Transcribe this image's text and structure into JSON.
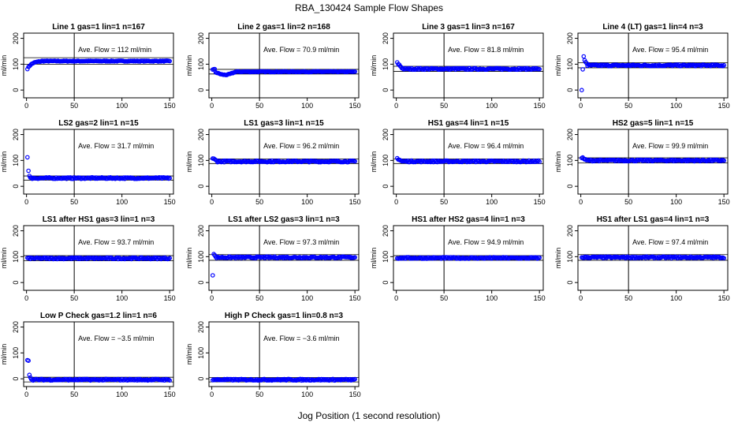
{
  "figure": {
    "title": "RBA_130424  Sample Flow Shapes",
    "xlabel": "Jog Position (1 second resolution)"
  },
  "chart_data": [
    {
      "type": "scatter",
      "title": "Line 1 gas=1 lin=1 n=167",
      "ylabel": "ml/min",
      "annotation": "Ave. Flow =  112  ml/min",
      "xlim": [
        -3,
        154
      ],
      "ylim": [
        -30,
        220
      ],
      "x_ticks": [
        0,
        50,
        100,
        150
      ],
      "y_ticks": [
        0,
        100,
        200
      ],
      "mean": 112,
      "band": [
        100,
        125
      ],
      "vline": 50,
      "marker_color": "#0000ff",
      "shape": "rise",
      "start_value": 75,
      "start_len": 15
    },
    {
      "type": "scatter",
      "title": "Line 2 gas=1 lin=2 n=168",
      "ylabel": "ml/min",
      "annotation": "Ave. Flow = 70.9  ml/min",
      "xlim": [
        -3,
        154
      ],
      "ylim": [
        -30,
        220
      ],
      "x_ticks": [
        0,
        50,
        100,
        150
      ],
      "y_ticks": [
        0,
        100,
        200
      ],
      "mean": 70.9,
      "band": [
        62,
        80
      ],
      "vline": 50,
      "marker_color": "#0000ff",
      "shape": "dip",
      "start_value": 80,
      "start_len": 25
    },
    {
      "type": "scatter",
      "title": "Line 3 gas=1 lin=3 n=167",
      "ylabel": "ml/min",
      "annotation": "Ave. Flow = 81.8  ml/min",
      "xlim": [
        -3,
        154
      ],
      "ylim": [
        -30,
        220
      ],
      "x_ticks": [
        0,
        50,
        100,
        150
      ],
      "y_ticks": [
        0,
        100,
        200
      ],
      "mean": 81.8,
      "band": [
        72,
        92
      ],
      "vline": 50,
      "marker_color": "#0000ff",
      "shape": "spike",
      "start_value": 105,
      "start_len": 6
    },
    {
      "type": "scatter",
      "title": "Line 4 (LT) gas=1 lin=4 n=3",
      "ylabel": "ml/min",
      "annotation": "Ave. Flow = 95.4  ml/min",
      "xlim": [
        -3,
        154
      ],
      "ylim": [
        -30,
        220
      ],
      "x_ticks": [
        0,
        50,
        100,
        150
      ],
      "y_ticks": [
        0,
        100,
        200
      ],
      "mean": 95.4,
      "band": [
        86,
        106
      ],
      "vline": 50,
      "marker_color": "#0000ff",
      "shape": "outliers",
      "start_points": [
        [
          1,
          0
        ],
        [
          2,
          80
        ],
        [
          3,
          130
        ],
        [
          4,
          115
        ],
        [
          5,
          108
        ],
        [
          6,
          104
        ]
      ]
    },
    {
      "type": "scatter",
      "title": "LS2 gas=2 lin=1 n=15",
      "ylabel": "ml/min",
      "annotation": "Ave. Flow = 31.7  ml/min",
      "xlim": [
        -3,
        154
      ],
      "ylim": [
        -30,
        220
      ],
      "x_ticks": [
        0,
        50,
        100,
        150
      ],
      "y_ticks": [
        0,
        100,
        200
      ],
      "mean": 31.7,
      "band": [
        24,
        40
      ],
      "vline": 50,
      "marker_color": "#0000ff",
      "shape": "outliers",
      "start_points": [
        [
          1,
          112
        ],
        [
          2,
          60
        ],
        [
          3,
          40
        ]
      ]
    },
    {
      "type": "scatter",
      "title": "LS1 gas=3 lin=1 n=15",
      "ylabel": "ml/min",
      "annotation": "Ave. Flow = 96.2  ml/min",
      "xlim": [
        -3,
        154
      ],
      "ylim": [
        -30,
        220
      ],
      "x_ticks": [
        0,
        50,
        100,
        150
      ],
      "y_ticks": [
        0,
        100,
        200
      ],
      "mean": 96.2,
      "band": [
        88,
        106
      ],
      "vline": 50,
      "marker_color": "#0000ff",
      "shape": "spike",
      "start_value": 108,
      "start_len": 5
    },
    {
      "type": "scatter",
      "title": "HS1 gas=4 lin=1 n=15",
      "ylabel": "ml/min",
      "annotation": "Ave. Flow = 96.4  ml/min",
      "xlim": [
        -3,
        154
      ],
      "ylim": [
        -30,
        220
      ],
      "x_ticks": [
        0,
        50,
        100,
        150
      ],
      "y_ticks": [
        0,
        100,
        200
      ],
      "mean": 96.4,
      "band": [
        88,
        106
      ],
      "vline": 50,
      "marker_color": "#0000ff",
      "shape": "spike",
      "start_value": 108,
      "start_len": 5
    },
    {
      "type": "scatter",
      "title": "HS2 gas=5 lin=1 n=15",
      "ylabel": "ml/min",
      "annotation": "Ave. Flow = 99.9  ml/min",
      "xlim": [
        -3,
        154
      ],
      "ylim": [
        -30,
        220
      ],
      "x_ticks": [
        0,
        50,
        100,
        150
      ],
      "y_ticks": [
        0,
        100,
        200
      ],
      "mean": 99.9,
      "band": [
        90,
        110
      ],
      "vline": 50,
      "marker_color": "#0000ff",
      "shape": "spike",
      "start_value": 112,
      "start_len": 5
    },
    {
      "type": "scatter",
      "title": "LS1 after HS1 gas=3 lin=1 n=3",
      "ylabel": "ml/min",
      "annotation": "Ave. Flow = 93.7  ml/min",
      "xlim": [
        -3,
        154
      ],
      "ylim": [
        -30,
        220
      ],
      "x_ticks": [
        0,
        50,
        100,
        150
      ],
      "y_ticks": [
        0,
        100,
        200
      ],
      "mean": 93.7,
      "band": [
        84,
        104
      ],
      "vline": 50,
      "marker_color": "#0000ff",
      "shape": "flat"
    },
    {
      "type": "scatter",
      "title": "LS1 after LS2 gas=3 lin=1 n=3",
      "ylabel": "ml/min",
      "annotation": "Ave. Flow = 97.3  ml/min",
      "xlim": [
        -3,
        154
      ],
      "ylim": [
        -30,
        220
      ],
      "x_ticks": [
        0,
        50,
        100,
        150
      ],
      "y_ticks": [
        0,
        100,
        200
      ],
      "mean": 97.3,
      "band": [
        86,
        108
      ],
      "vline": 50,
      "marker_color": "#0000ff",
      "shape": "outliers",
      "start_points": [
        [
          1,
          28
        ],
        [
          2,
          110
        ],
        [
          3,
          106
        ]
      ]
    },
    {
      "type": "scatter",
      "title": "HS1 after HS2 gas=4 lin=1 n=3",
      "ylabel": "ml/min",
      "annotation": "Ave. Flow = 94.9  ml/min",
      "xlim": [
        -3,
        154
      ],
      "ylim": [
        -30,
        220
      ],
      "x_ticks": [
        0,
        50,
        100,
        150
      ],
      "y_ticks": [
        0,
        100,
        200
      ],
      "mean": 94.9,
      "band": [
        86,
        104
      ],
      "vline": 50,
      "marker_color": "#0000ff",
      "shape": "flat"
    },
    {
      "type": "scatter",
      "title": "HS1 after LS1 gas=4 lin=1 n=3",
      "ylabel": "ml/min",
      "annotation": "Ave. Flow = 97.4  ml/min",
      "xlim": [
        -3,
        154
      ],
      "ylim": [
        -30,
        220
      ],
      "x_ticks": [
        0,
        50,
        100,
        150
      ],
      "y_ticks": [
        0,
        100,
        200
      ],
      "mean": 97.4,
      "band": [
        86,
        108
      ],
      "vline": 50,
      "marker_color": "#0000ff",
      "shape": "flat"
    },
    {
      "type": "scatter",
      "title": "Low P Check gas=1.2 lin=1 n=6",
      "ylabel": "ml/min",
      "annotation": "Ave. Flow =  −3.5  ml/min",
      "xlim": [
        -3,
        154
      ],
      "ylim": [
        -30,
        220
      ],
      "x_ticks": [
        0,
        50,
        100,
        150
      ],
      "y_ticks": [
        0,
        100,
        200
      ],
      "mean": -3.5,
      "band": [
        -12,
        6
      ],
      "vline": 50,
      "marker_color": "#0000ff",
      "shape": "outliers",
      "start_points": [
        [
          1,
          72
        ],
        [
          2,
          70
        ],
        [
          3,
          15
        ],
        [
          4,
          5
        ]
      ]
    },
    {
      "type": "scatter",
      "title": "High P Check gas=1 lin=0.8 n=3",
      "ylabel": "ml/min",
      "annotation": "Ave. Flow =  −3.6  ml/min",
      "xlim": [
        -3,
        154
      ],
      "ylim": [
        -30,
        220
      ],
      "x_ticks": [
        0,
        50,
        100,
        150
      ],
      "y_ticks": [
        0,
        100,
        200
      ],
      "mean": -3.6,
      "band": [
        -12,
        5
      ],
      "vline": 50,
      "marker_color": "#0000ff",
      "shape": "flat"
    }
  ]
}
